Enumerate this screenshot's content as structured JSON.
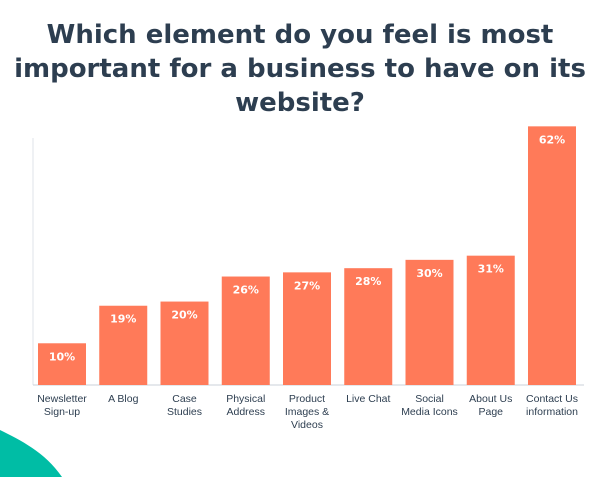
{
  "title_lines": [
    "Which element do you feel is most",
    "important for a business to have on its",
    "website?"
  ],
  "colors": {
    "bar": "#ff7a59",
    "title": "#2d3e50",
    "bar_label_inside": "#ffffff",
    "bar_label_outside": "#2d3e50",
    "corner_accent": "#00bda5"
  },
  "chart_data": {
    "type": "bar",
    "title": "Which element do you feel is most important for a business to have on its website?",
    "categories": [
      [
        "Newsletter",
        "Sign-up"
      ],
      [
        "A Blog"
      ],
      [
        "Case",
        "Studies"
      ],
      [
        "Physical",
        "Address"
      ],
      [
        "Product",
        "Images &",
        "Videos"
      ],
      [
        "Live Chat"
      ],
      [
        "Social",
        "Media Icons"
      ],
      [
        "About Us",
        "Page"
      ],
      [
        "Contact Us",
        "information"
      ]
    ],
    "values": [
      10,
      19,
      20,
      26,
      27,
      28,
      30,
      31,
      62
    ],
    "value_labels": [
      "10%",
      "19%",
      "20%",
      "26%",
      "27%",
      "28%",
      "30%",
      "31%",
      "62%"
    ],
    "ylim": [
      0,
      64
    ],
    "grid": false,
    "legend": "none"
  }
}
